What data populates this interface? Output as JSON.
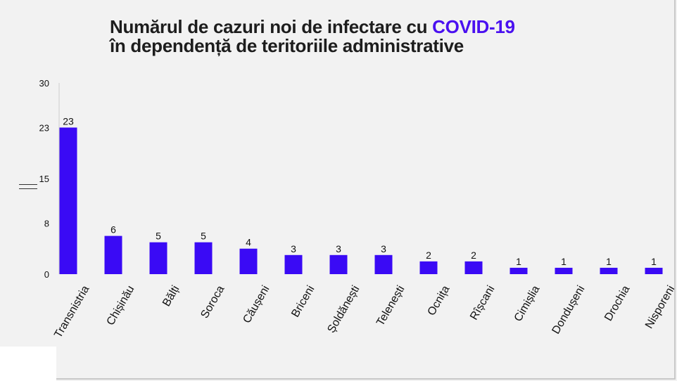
{
  "title": {
    "line1_prefix": "Numărul de cazuri noi de infectare cu ",
    "line1_accent": "COVID-19",
    "line2": "în dependență de teritoriile administrative"
  },
  "colors": {
    "bar": "#3a0af5",
    "accent": "#4a10f0",
    "title": "#1d1d1d",
    "background": "#f2f2f2"
  },
  "chart_data": {
    "type": "bar",
    "categories": [
      "Transnistria",
      "Chișinău",
      "Bălți",
      "Soroca",
      "Căușeni",
      "Briceni",
      "Șoldănești",
      "Telenești",
      "Ocnița",
      "Rîșcani",
      "Cimișlia",
      "Dondușeni",
      "Drochia",
      "Nisporeni"
    ],
    "values": [
      23,
      6,
      5,
      5,
      4,
      3,
      3,
      3,
      2,
      2,
      1,
      1,
      1,
      1
    ],
    "yticks": [
      0,
      8,
      15,
      23,
      30
    ],
    "ylim": [
      0,
      30
    ],
    "grid": false,
    "xlabel": "",
    "ylabel": ""
  }
}
